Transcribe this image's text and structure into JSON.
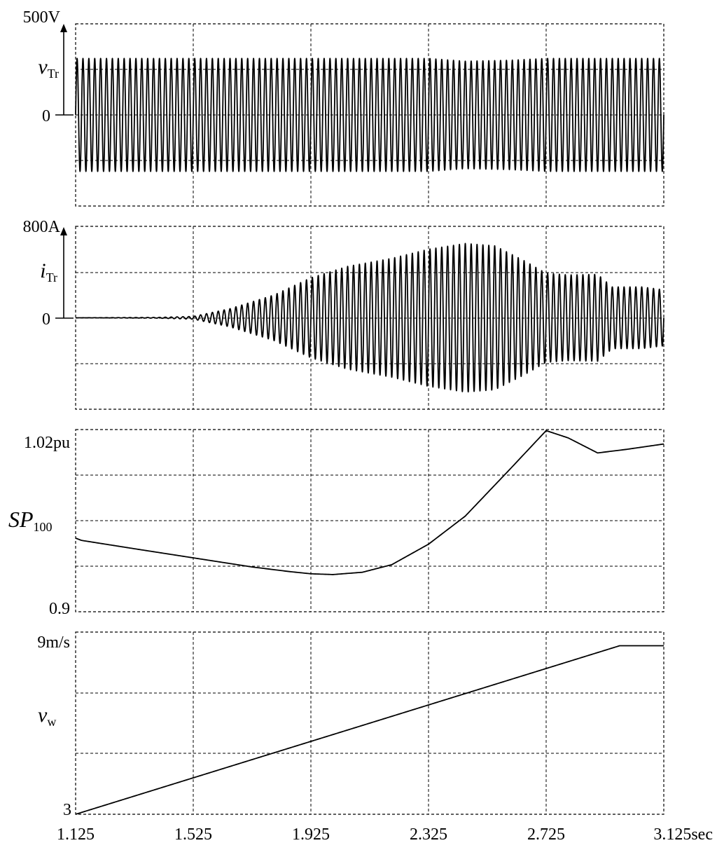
{
  "chart_data": [
    {
      "type": "line",
      "panel": "voltage",
      "ylabel": "v",
      "ylabel_sub": "Tr",
      "ytick_top": "500V",
      "ytick_zero": "0",
      "ylim": [
        -500,
        500
      ],
      "grid": true,
      "waveform": "sinusoid",
      "cycles": 100,
      "series": [
        {
          "x": [
            1.125,
            2.325,
            2.45,
            2.6,
            2.725,
            3.125
          ],
          "envelope": [
            310,
            310,
            295,
            300,
            310,
            310
          ]
        }
      ]
    },
    {
      "type": "line",
      "panel": "current",
      "ylabel": "i",
      "ylabel_sub": "Tr",
      "ytick_top": "800A",
      "ytick_zero": "0",
      "ylim": [
        -800,
        800
      ],
      "grid": true,
      "waveform": "sinusoid",
      "cycles": 100,
      "series": [
        {
          "x": [
            1.125,
            1.4,
            1.525,
            1.65,
            1.8,
            1.925,
            2.05,
            2.2,
            2.325,
            2.45,
            2.55,
            2.65,
            2.725,
            2.8,
            2.9,
            2.95,
            3.05,
            3.125
          ],
          "envelope": [
            0,
            3,
            12,
            80,
            200,
            350,
            450,
            520,
            600,
            650,
            630,
            500,
            390,
            375,
            380,
            270,
            270,
            245
          ]
        }
      ]
    },
    {
      "type": "line",
      "panel": "power",
      "ylabel": "SP",
      "ylabel_sub": "100",
      "ytick_top": "1.02pu",
      "ytick_bottom": "0.9",
      "ylim": [
        0.9,
        1.02
      ],
      "grid": true,
      "series": [
        {
          "x": [
            1.125,
            1.145,
            1.325,
            1.525,
            1.725,
            1.85,
            1.925,
            2.0,
            2.1,
            2.2,
            2.325,
            2.45,
            2.6,
            2.725,
            2.8,
            2.9,
            3.0,
            3.125
          ],
          "y": [
            0.9485,
            0.947,
            0.9415,
            0.9355,
            0.9295,
            0.9265,
            0.925,
            0.9245,
            0.926,
            0.931,
            0.9445,
            0.963,
            0.9935,
            1.0193,
            1.0145,
            1.0046,
            1.007,
            1.0105
          ]
        }
      ]
    },
    {
      "type": "line",
      "panel": "wind-speed",
      "ylabel": "v",
      "ylabel_sub": "w",
      "ytick_top": "9m/s",
      "ytick_bottom": "3",
      "ylim": [
        3,
        9
      ],
      "grid": true,
      "xticks": [
        "1.125",
        "1.525",
        "1.925",
        "2.325",
        "2.725",
        "3.125sec"
      ],
      "xlim": [
        1.125,
        3.125
      ],
      "series": [
        {
          "x": [
            1.125,
            2.975,
            3.125
          ],
          "y": [
            3.0,
            8.55,
            8.55
          ]
        }
      ]
    }
  ]
}
